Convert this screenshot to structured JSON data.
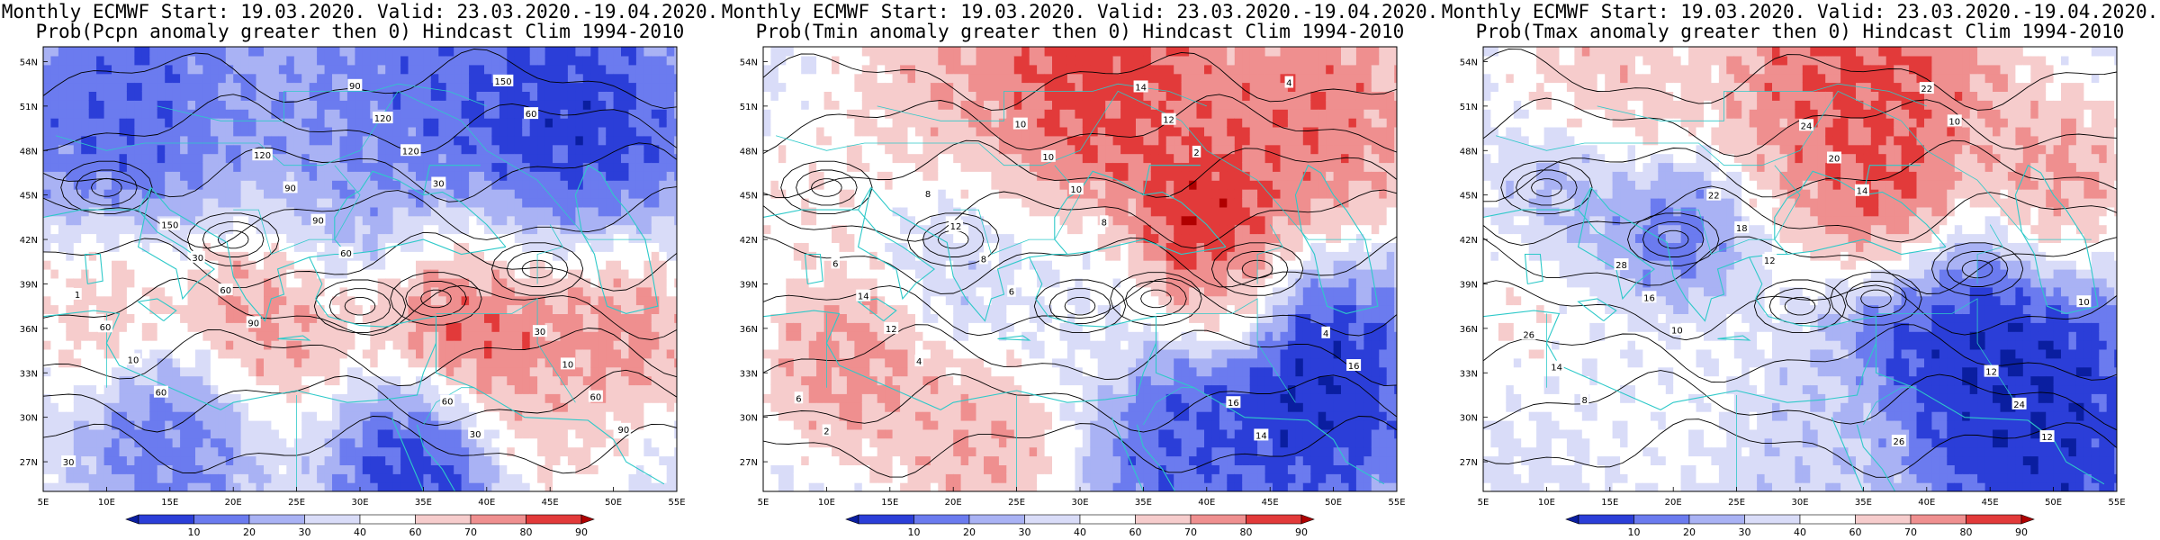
{
  "panels": [
    {
      "title_line1": "Monthly ECMWF Start: 19.03.2020. Valid: 23.03.2020.-19.04.2020.",
      "title_line2": "Prob(Pcpn anomaly greater then 0) Hindcast Clim 1994-2010",
      "contour_labels": [
        "30",
        "60",
        "90",
        "60",
        "30",
        "60",
        "90",
        "10",
        "60",
        "90",
        "120",
        "150",
        "60",
        "60",
        "30",
        "90",
        "120",
        "30",
        "10",
        "1",
        "150",
        "120",
        "90",
        "60",
        "30"
      ]
    },
    {
      "title_line1": "Monthly ECMWF Start: 19.03.2020. Valid: 23.03.2020.-19.04.2020.",
      "title_line2": "Prob(Tmin anomaly greater then 0) Hindcast Clim 1994-2010",
      "contour_labels": [
        "2",
        "4",
        "6",
        "8",
        "2",
        "4",
        "6",
        "12",
        "8",
        "10",
        "12",
        "14",
        "16",
        "14",
        "12",
        "10",
        "14",
        "16",
        "4",
        "6",
        "8",
        "10"
      ]
    },
    {
      "title_line1": "Monthly ECMWF Start: 19.03.2020. Valid: 23.03.2020.-19.04.2020.",
      "title_line2": "Prob(Tmax anomaly greater then 0) Hindcast Clim 1994-2010",
      "contour_labels": [
        "8",
        "10",
        "12",
        "14",
        "10",
        "12",
        "14",
        "16",
        "18",
        "20",
        "22",
        "24",
        "26",
        "28",
        "22",
        "24",
        "26",
        "12",
        "10"
      ]
    }
  ],
  "map": {
    "lat_labels": [
      "54N",
      "51N",
      "48N",
      "45N",
      "42N",
      "39N",
      "36N",
      "33N",
      "30N",
      "27N"
    ],
    "lon_labels": [
      "5E",
      "10E",
      "15E",
      "20E",
      "25E",
      "30E",
      "35E",
      "40E",
      "45E",
      "50E",
      "55E"
    ]
  },
  "colorbar": {
    "ticks": [
      "10",
      "20",
      "30",
      "40",
      "60",
      "70",
      "80",
      "90"
    ],
    "colors": [
      "#0a1ea0",
      "#2b3ed8",
      "#6b7bef",
      "#a9b2f4",
      "#d9dcf8",
      "#ffffff",
      "#f6cccc",
      "#ef8f8f",
      "#e23a3a",
      "#b00000"
    ]
  }
}
